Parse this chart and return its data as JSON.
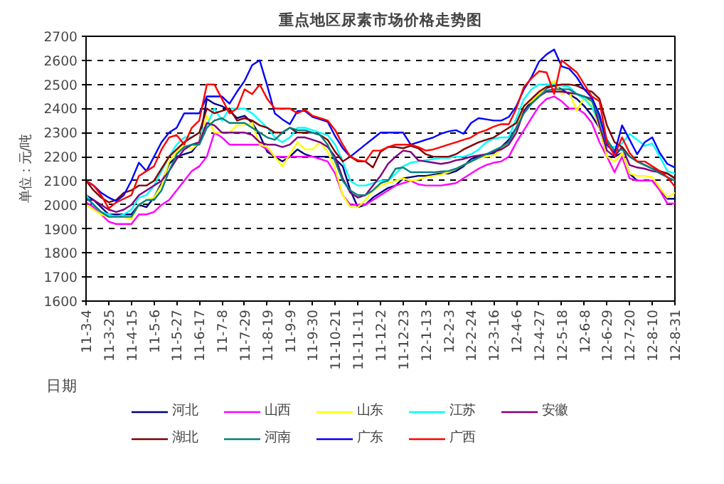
{
  "chart_data": {
    "type": "line",
    "title": "重点地区尿素市场价格走势图",
    "ylabel": "单位：元/吨",
    "xlabel": "日期",
    "categories": [
      "11-3-4",
      null,
      null,
      "11-3-25",
      null,
      null,
      "11-4-15",
      null,
      null,
      "11-5-6",
      null,
      null,
      "11-5-27",
      null,
      null,
      "11-6-17",
      null,
      null,
      "11-7-8",
      null,
      null,
      "11-7-29",
      null,
      null,
      "11-8-19",
      null,
      null,
      "11-9-9",
      null,
      null,
      "11-9-30",
      null,
      null,
      "11-10-21",
      null,
      null,
      "11-11-11",
      null,
      null,
      "11-12-2",
      null,
      null,
      "11-12-23",
      null,
      null,
      "12-1-13",
      null,
      null,
      "12-2-3",
      null,
      null,
      "12-2-24",
      null,
      null,
      "12-3-16",
      null,
      null,
      "12-4-6",
      null,
      null,
      "12-4-27",
      null,
      null,
      "12-5-18",
      null,
      null,
      "12-6-8",
      null,
      null,
      "12-6-29",
      null,
      null,
      "12-7-20",
      null,
      null,
      "12-8-10",
      null,
      null,
      "12-8-31"
    ],
    "ylim": [
      1600,
      2700
    ],
    "yticks": [
      1600,
      1700,
      1800,
      1900,
      2000,
      2100,
      2200,
      2300,
      2400,
      2500,
      2600,
      2700
    ],
    "grid": "y",
    "legend": "bottom",
    "marker": "none",
    "line_style": "solid",
    "series": [
      {
        "name": "河北",
        "color": "#000080",
        "values": [
          2040,
          2020,
          1990,
          1960,
          1960,
          1960,
          1960,
          2000,
          1990,
          2030,
          2090,
          2170,
          2200,
          2210,
          2220,
          2260,
          2440,
          2420,
          2410,
          2390,
          2360,
          2370,
          2340,
          2290,
          2220,
          2200,
          2180,
          2200,
          2230,
          2210,
          2200,
          2200,
          2200,
          2190,
          2160,
          2060,
          1990,
          2000,
          2030,
          2050,
          2070,
          2080,
          2110,
          2115,
          2120,
          2120,
          2125,
          2130,
          2130,
          2140,
          2160,
          2190,
          2200,
          2210,
          2215,
          2240,
          2270,
          2320,
          2390,
          2430,
          2460,
          2485,
          2495,
          2480,
          2460,
          2440,
          2410,
          2370,
          2320,
          2200,
          2200,
          2215,
          2130,
          2100,
          2100,
          2100,
          2065,
          2025,
          2025
        ]
      },
      {
        "name": "山西",
        "color": "#ff00ff",
        "values": [
          2010,
          1990,
          1960,
          1930,
          1920,
          1920,
          1920,
          1960,
          1960,
          1970,
          2000,
          2020,
          2060,
          2100,
          2140,
          2160,
          2200,
          2300,
          2280,
          2250,
          2250,
          2250,
          2250,
          2250,
          2230,
          2200,
          2200,
          2200,
          2200,
          2200,
          2200,
          2190,
          2180,
          2130,
          2040,
          2000,
          2000,
          2000,
          2020,
          2040,
          2060,
          2080,
          2090,
          2100,
          2085,
          2080,
          2080,
          2080,
          2085,
          2090,
          2110,
          2130,
          2150,
          2165,
          2175,
          2180,
          2200,
          2260,
          2310,
          2360,
          2410,
          2440,
          2450,
          2430,
          2400,
          2400,
          2380,
          2340,
          2260,
          2200,
          2135,
          2200,
          2110,
          2100,
          2100,
          2100,
          2060,
          2005,
          2005
        ]
      },
      {
        "name": "山东",
        "color": "#ffff00",
        "values": [
          2000,
          1980,
          1960,
          1950,
          1950,
          1950,
          1940,
          2000,
          2020,
          2030,
          2080,
          2180,
          2220,
          2250,
          2230,
          2260,
          2370,
          2300,
          2300,
          2300,
          2330,
          2330,
          2340,
          2250,
          2240,
          2200,
          2160,
          2210,
          2260,
          2230,
          2230,
          2260,
          2220,
          2150,
          2040,
          1990,
          1990,
          2020,
          2060,
          2080,
          2090,
          2100,
          2110,
          2100,
          2105,
          2115,
          2120,
          2125,
          2135,
          2150,
          2165,
          2180,
          2195,
          2200,
          2205,
          2230,
          2260,
          2310,
          2410,
          2430,
          2460,
          2490,
          2515,
          2460,
          2470,
          2390,
          2450,
          2410,
          2320,
          2200,
          2180,
          2215,
          2130,
          2120,
          2120,
          2115,
          2070,
          2030,
          2050
        ]
      },
      {
        "name": "江苏",
        "color": "#00ffff",
        "values": [
          2040,
          2000,
          1970,
          1960,
          1950,
          1960,
          1980,
          2030,
          2040,
          2080,
          2140,
          2200,
          2250,
          2280,
          2280,
          2300,
          2330,
          2400,
          2350,
          2400,
          2400,
          2400,
          2380,
          2350,
          2320,
          2280,
          2260,
          2280,
          2320,
          2320,
          2310,
          2300,
          2290,
          2250,
          2180,
          2100,
          2080,
          2080,
          2090,
          2100,
          2100,
          2130,
          2160,
          2175,
          2180,
          2185,
          2190,
          2195,
          2195,
          2200,
          2200,
          2210,
          2230,
          2260,
          2275,
          2280,
          2280,
          2360,
          2440,
          2480,
          2500,
          2500,
          2500,
          2495,
          2490,
          2460,
          2440,
          2405,
          2340,
          2240,
          2240,
          2255,
          2295,
          2270,
          2245,
          2255,
          2200,
          2140,
          2130
        ]
      },
      {
        "name": "安徽",
        "color": "#800080",
        "values": [
          2020,
          2020,
          2000,
          1980,
          1970,
          1980,
          2000,
          2040,
          2060,
          2080,
          2100,
          2140,
          2190,
          2230,
          2250,
          2260,
          2340,
          2330,
          2300,
          2300,
          2300,
          2300,
          2290,
          2260,
          2250,
          2250,
          2240,
          2250,
          2280,
          2280,
          2270,
          2260,
          2240,
          2200,
          2110,
          2050,
          2030,
          2040,
          2080,
          2120,
          2170,
          2200,
          2225,
          2220,
          2185,
          2180,
          2175,
          2170,
          2175,
          2185,
          2190,
          2200,
          2205,
          2210,
          2220,
          2230,
          2250,
          2300,
          2390,
          2420,
          2450,
          2470,
          2470,
          2470,
          2465,
          2460,
          2450,
          2440,
          2330,
          2225,
          2200,
          2240,
          2165,
          2155,
          2150,
          2140,
          2135,
          2130,
          2110
        ]
      },
      {
        "name": "湖北",
        "color": "#800000",
        "values": [
          2100,
          2060,
          2030,
          2010,
          2020,
          2050,
          2060,
          2080,
          2080,
          2100,
          2150,
          2200,
          2230,
          2260,
          2280,
          2300,
          2400,
          2380,
          2390,
          2400,
          2350,
          2360,
          2350,
          2330,
          2320,
          2300,
          2300,
          2320,
          2300,
          2300,
          2300,
          2290,
          2270,
          2220,
          2180,
          2200,
          2180,
          2180,
          2155,
          2220,
          2240,
          2240,
          2235,
          2245,
          2235,
          2210,
          2200,
          2200,
          2200,
          2210,
          2230,
          2245,
          2260,
          2270,
          2280,
          2300,
          2320,
          2340,
          2410,
          2440,
          2470,
          2490,
          2495,
          2500,
          2500,
          2495,
          2480,
          2470,
          2440,
          2330,
          2260,
          2240,
          2200,
          2180,
          2165,
          2150,
          2140,
          2130,
          2110
        ]
      },
      {
        "name": "河南",
        "color": "#008080",
        "values": [
          2030,
          2000,
          1970,
          1950,
          1950,
          1950,
          1950,
          2000,
          2020,
          2020,
          2060,
          2140,
          2210,
          2240,
          2250,
          2250,
          2320,
          2350,
          2360,
          2340,
          2340,
          2340,
          2320,
          2300,
          2280,
          2270,
          2300,
          2320,
          2310,
          2310,
          2300,
          2290,
          2250,
          2180,
          2100,
          2060,
          2040,
          2040,
          2060,
          2090,
          2100,
          2150,
          2155,
          2135,
          2135,
          2135,
          2135,
          2138,
          2140,
          2150,
          2165,
          2180,
          2195,
          2210,
          2225,
          2240,
          2260,
          2320,
          2380,
          2420,
          2450,
          2475,
          2480,
          2480,
          2480,
          2460,
          2450,
          2430,
          2360,
          2270,
          2225,
          2230,
          2200,
          2180,
          2165,
          2150,
          2130,
          2115,
          2100
        ]
      },
      {
        "name": "广东",
        "color": "#0000ff",
        "values": [
          2100,
          2080,
          2050,
          2030,
          2015,
          2040,
          2100,
          2175,
          2140,
          2200,
          2260,
          2300,
          2320,
          2380,
          2380,
          2380,
          2450,
          2450,
          2450,
          2420,
          2470,
          2515,
          2580,
          2600,
          2495,
          2380,
          2355,
          2335,
          2390,
          2390,
          2365,
          2355,
          2345,
          2285,
          2235,
          2200,
          2225,
          2250,
          2275,
          2300,
          2300,
          2300,
          2300,
          2250,
          2260,
          2270,
          2280,
          2295,
          2305,
          2310,
          2295,
          2340,
          2360,
          2355,
          2350,
          2350,
          2365,
          2410,
          2480,
          2530,
          2595,
          2625,
          2645,
          2575,
          2565,
          2530,
          2480,
          2445,
          2375,
          2250,
          2215,
          2330,
          2270,
          2210,
          2260,
          2280,
          2215,
          2170,
          2155
        ]
      },
      {
        "name": "广西",
        "color": "#ff0000",
        "values": [
          2100,
          2080,
          2040,
          1985,
          2010,
          2025,
          2040,
          2120,
          2140,
          2160,
          2230,
          2280,
          2290,
          2250,
          2320,
          2350,
          2500,
          2500,
          2440,
          2380,
          2400,
          2480,
          2460,
          2500,
          2440,
          2400,
          2400,
          2400,
          2380,
          2395,
          2370,
          2360,
          2350,
          2310,
          2250,
          2200,
          2185,
          2180,
          2225,
          2225,
          2240,
          2250,
          2250,
          2250,
          2240,
          2225,
          2230,
          2240,
          2250,
          2260,
          2270,
          2280,
          2300,
          2310,
          2325,
          2335,
          2335,
          2400,
          2490,
          2525,
          2555,
          2550,
          2460,
          2600,
          2575,
          2550,
          2500,
          2450,
          2430,
          2260,
          2205,
          2280,
          2215,
          2180,
          2180,
          2160,
          2140,
          2115,
          2075
        ]
      }
    ]
  }
}
